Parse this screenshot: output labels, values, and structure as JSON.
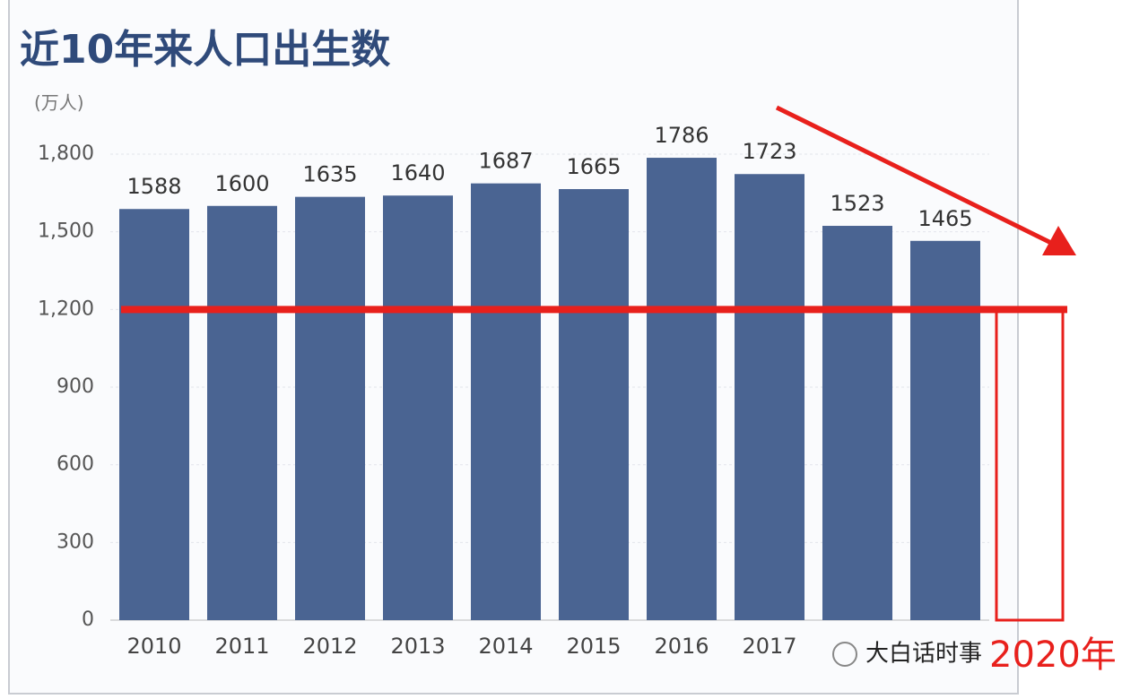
{
  "chart_data": {
    "type": "bar",
    "title": "近10年来人口出生数",
    "y_label": "(万人)",
    "categories": [
      "2010",
      "2011",
      "2012",
      "2013",
      "2014",
      "2015",
      "2016",
      "2017",
      null,
      null
    ],
    "values": [
      1588,
      1600,
      1635,
      1640,
      1687,
      1665,
      1786,
      1723,
      1523,
      1465
    ],
    "color": "#4a6492",
    "ylim": [
      0,
      1800
    ],
    "yticks": [
      0,
      300,
      600,
      900,
      {
        "value": 1200,
        "label": "1,200"
      },
      {
        "value": 1500,
        "label": "1,500"
      },
      {
        "value": 1800,
        "label": "1,800"
      }
    ],
    "grid": true,
    "annotation": {
      "label": "2020年",
      "value": 1200,
      "color": "#e8201c"
    },
    "watermark": "大白话时事"
  }
}
